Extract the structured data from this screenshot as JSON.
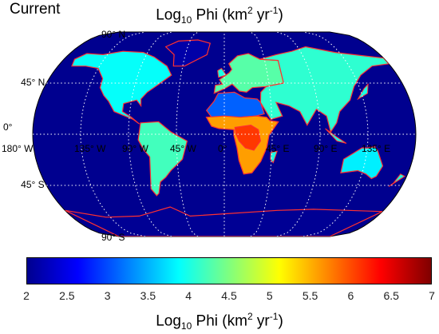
{
  "panel_label": "Current",
  "title": {
    "prefix": "Log",
    "sub": "10",
    "mid": " Phi (km",
    "sup1": "2",
    "mid2": " yr",
    "sup2": "-1",
    "suffix": ")"
  },
  "map": {
    "projection": "robinson",
    "ocean_color": "#00008f",
    "coast_color": "#ff3030",
    "grid": {
      "lat": [
        -45,
        0,
        45
      ],
      "lon": [
        -135,
        -90,
        -45,
        0,
        45,
        90,
        135
      ]
    },
    "lat_labels": [
      {
        "text": "90° N",
        "lat": 90
      },
      {
        "text": "45° N",
        "lat": 45
      },
      {
        "text": "0°",
        "lat": 0
      },
      {
        "text": "45° S",
        "lat": -45
      },
      {
        "text": "90° S",
        "lat": -90
      }
    ],
    "lon_labels": [
      "180° W",
      "135° W",
      "90° W",
      "45° W",
      "0°",
      "45° E",
      "90° E",
      "135° E"
    ]
  },
  "colorbar": {
    "min": 2,
    "max": 7,
    "ticks": [
      "2",
      "2.5",
      "3",
      "3.5",
      "4",
      "4.5",
      "5",
      "5.5",
      "6",
      "6.5",
      "7"
    ],
    "label": {
      "prefix": "Log",
      "sub": "10",
      "mid": " Phi (km",
      "sup1": "2",
      "mid2": " yr",
      "sup2": "-1",
      "suffix": ")"
    }
  },
  "regions": [
    {
      "name": "north-america",
      "value": 3.9
    },
    {
      "name": "greenland",
      "value": 2.2
    },
    {
      "name": "south-america",
      "value": 4.2
    },
    {
      "name": "europe",
      "value": 4.3
    },
    {
      "name": "sahara",
      "value": 3.1
    },
    {
      "name": "sub-saharan-africa",
      "value": 5.6
    },
    {
      "name": "central-africa",
      "value": 6.1
    },
    {
      "name": "asia",
      "value": 4.1
    },
    {
      "name": "australia",
      "value": 3.8
    },
    {
      "name": "antarctica",
      "value": 2.1
    }
  ]
}
